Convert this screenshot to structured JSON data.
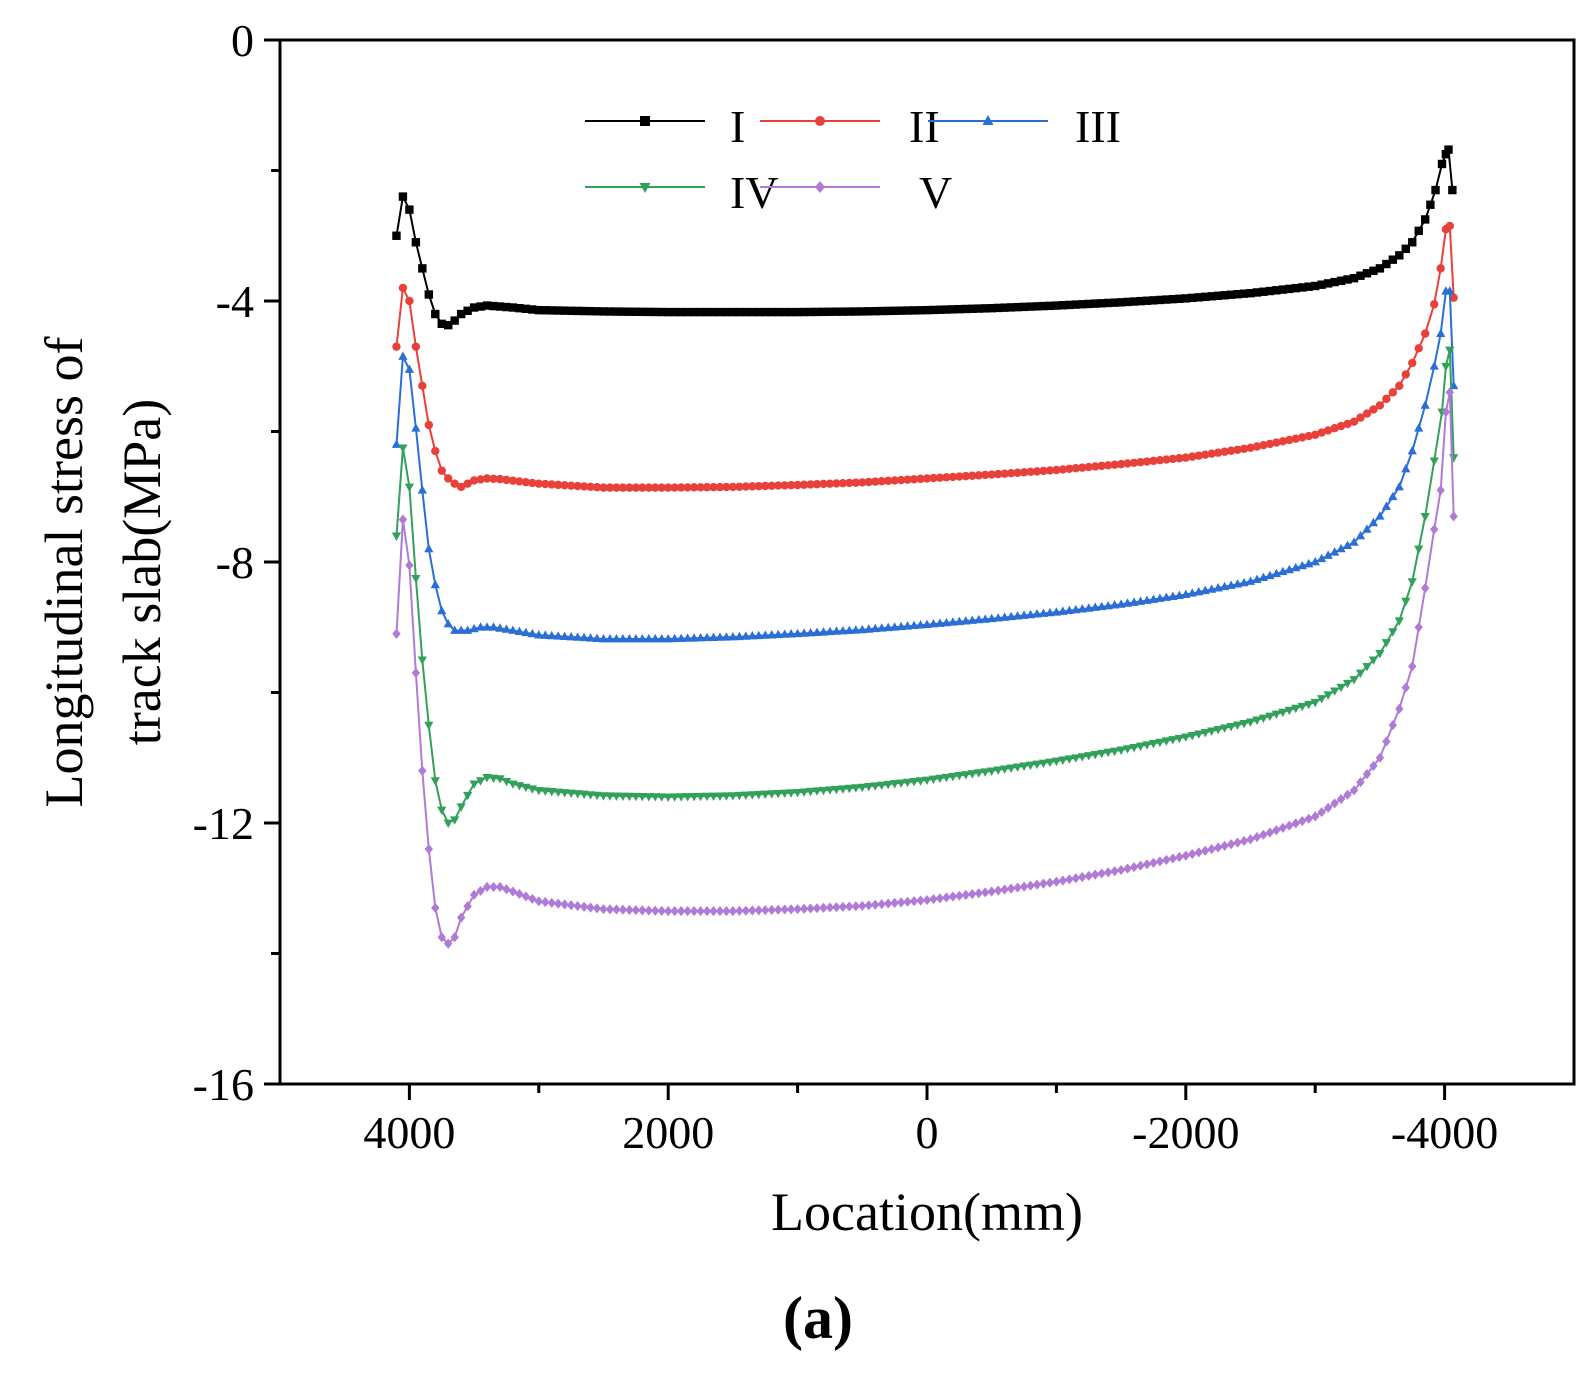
{
  "chart_data": {
    "type": "line",
    "title": "",
    "xlabel": "Location(mm)",
    "ylabel_lines": [
      "Longitudinal stress of",
      "track slab(MPa)"
    ],
    "xlim": [
      5000,
      -5000
    ],
    "ylim": [
      -16,
      0
    ],
    "x_ticks": [
      4000,
      2000,
      0,
      -2000,
      -4000
    ],
    "x_tick_labels": [
      "4000",
      "2000",
      "0",
      "-2000",
      "-4000"
    ],
    "y_ticks": [
      0,
      -4,
      -8,
      -12,
      -16
    ],
    "y_tick_labels": [
      "0",
      "-4",
      "-8",
      "-12",
      "-16"
    ],
    "legend_position": "top-center",
    "panel_label": "(a)",
    "series": [
      {
        "name": "I",
        "color": "#000000",
        "marker": "square",
        "points": [
          [
            4100,
            -3.0
          ],
          [
            4050,
            -2.4
          ],
          [
            4000,
            -2.6
          ],
          [
            3950,
            -3.1
          ],
          [
            3900,
            -3.5
          ],
          [
            3850,
            -3.9
          ],
          [
            3800,
            -4.2
          ],
          [
            3750,
            -4.35
          ],
          [
            3700,
            -4.37
          ],
          [
            3650,
            -4.3
          ],
          [
            3600,
            -4.2
          ],
          [
            3500,
            -4.1
          ],
          [
            3400,
            -4.07
          ],
          [
            3200,
            -4.1
          ],
          [
            3000,
            -4.14
          ],
          [
            2500,
            -4.16
          ],
          [
            2000,
            -4.17
          ],
          [
            1500,
            -4.17
          ],
          [
            1000,
            -4.17
          ],
          [
            500,
            -4.16
          ],
          [
            0,
            -4.14
          ],
          [
            -500,
            -4.11
          ],
          [
            -1000,
            -4.07
          ],
          [
            -1500,
            -4.02
          ],
          [
            -2000,
            -3.96
          ],
          [
            -2500,
            -3.88
          ],
          [
            -3000,
            -3.77
          ],
          [
            -3300,
            -3.65
          ],
          [
            -3500,
            -3.5
          ],
          [
            -3650,
            -3.3
          ],
          [
            -3750,
            -3.1
          ],
          [
            -3850,
            -2.75
          ],
          [
            -3930,
            -2.3
          ],
          [
            -3980,
            -1.9
          ],
          [
            -4010,
            -1.75
          ],
          [
            -4030,
            -1.68
          ],
          [
            -4060,
            -2.3
          ]
        ]
      },
      {
        "name": "II",
        "color": "#e8413a",
        "marker": "circle",
        "points": [
          [
            4100,
            -4.7
          ],
          [
            4050,
            -3.8
          ],
          [
            4000,
            -4.0
          ],
          [
            3950,
            -4.7
          ],
          [
            3900,
            -5.3
          ],
          [
            3850,
            -5.9
          ],
          [
            3800,
            -6.3
          ],
          [
            3750,
            -6.6
          ],
          [
            3700,
            -6.72
          ],
          [
            3650,
            -6.8
          ],
          [
            3600,
            -6.85
          ],
          [
            3550,
            -6.8
          ],
          [
            3500,
            -6.75
          ],
          [
            3400,
            -6.72
          ],
          [
            3300,
            -6.73
          ],
          [
            3000,
            -6.8
          ],
          [
            2500,
            -6.86
          ],
          [
            2000,
            -6.86
          ],
          [
            1500,
            -6.85
          ],
          [
            1000,
            -6.82
          ],
          [
            500,
            -6.78
          ],
          [
            0,
            -6.72
          ],
          [
            -500,
            -6.66
          ],
          [
            -1000,
            -6.59
          ],
          [
            -1500,
            -6.5
          ],
          [
            -2000,
            -6.4
          ],
          [
            -2500,
            -6.25
          ],
          [
            -3000,
            -6.05
          ],
          [
            -3300,
            -5.85
          ],
          [
            -3500,
            -5.6
          ],
          [
            -3650,
            -5.3
          ],
          [
            -3750,
            -4.95
          ],
          [
            -3850,
            -4.5
          ],
          [
            -3920,
            -4.05
          ],
          [
            -3970,
            -3.5
          ],
          [
            -4010,
            -2.9
          ],
          [
            -4040,
            -2.85
          ],
          [
            -4070,
            -3.95
          ]
        ]
      },
      {
        "name": "III",
        "color": "#2b6fd6",
        "marker": "triangle-up",
        "points": [
          [
            4100,
            -6.2
          ],
          [
            4050,
            -4.85
          ],
          [
            4000,
            -5.05
          ],
          [
            3950,
            -5.95
          ],
          [
            3900,
            -6.9
          ],
          [
            3850,
            -7.8
          ],
          [
            3800,
            -8.35
          ],
          [
            3750,
            -8.75
          ],
          [
            3700,
            -8.95
          ],
          [
            3650,
            -9.05
          ],
          [
            3550,
            -9.05
          ],
          [
            3450,
            -9.0
          ],
          [
            3350,
            -9.0
          ],
          [
            3200,
            -9.05
          ],
          [
            3000,
            -9.12
          ],
          [
            2500,
            -9.18
          ],
          [
            2000,
            -9.18
          ],
          [
            1500,
            -9.15
          ],
          [
            1000,
            -9.1
          ],
          [
            500,
            -9.04
          ],
          [
            0,
            -8.96
          ],
          [
            -500,
            -8.87
          ],
          [
            -1000,
            -8.77
          ],
          [
            -1500,
            -8.65
          ],
          [
            -2000,
            -8.5
          ],
          [
            -2500,
            -8.3
          ],
          [
            -3000,
            -8.0
          ],
          [
            -3300,
            -7.7
          ],
          [
            -3500,
            -7.3
          ],
          [
            -3650,
            -6.85
          ],
          [
            -3750,
            -6.3
          ],
          [
            -3850,
            -5.6
          ],
          [
            -3920,
            -5.0
          ],
          [
            -3970,
            -4.5
          ],
          [
            -4010,
            -3.85
          ],
          [
            -4040,
            -3.85
          ],
          [
            -4070,
            -5.3
          ]
        ]
      },
      {
        "name": "IV",
        "color": "#33a05c",
        "marker": "triangle-down",
        "points": [
          [
            4100,
            -7.6
          ],
          [
            4050,
            -6.25
          ],
          [
            4000,
            -6.85
          ],
          [
            3950,
            -8.25
          ],
          [
            3900,
            -9.5
          ],
          [
            3850,
            -10.5
          ],
          [
            3800,
            -11.35
          ],
          [
            3750,
            -11.8
          ],
          [
            3700,
            -12.0
          ],
          [
            3650,
            -11.95
          ],
          [
            3600,
            -11.75
          ],
          [
            3500,
            -11.4
          ],
          [
            3400,
            -11.3
          ],
          [
            3300,
            -11.32
          ],
          [
            3200,
            -11.4
          ],
          [
            3000,
            -11.5
          ],
          [
            2500,
            -11.58
          ],
          [
            2000,
            -11.6
          ],
          [
            1500,
            -11.58
          ],
          [
            1000,
            -11.53
          ],
          [
            500,
            -11.45
          ],
          [
            0,
            -11.34
          ],
          [
            -500,
            -11.2
          ],
          [
            -1000,
            -11.05
          ],
          [
            -1500,
            -10.88
          ],
          [
            -2000,
            -10.68
          ],
          [
            -2500,
            -10.45
          ],
          [
            -3000,
            -10.15
          ],
          [
            -3300,
            -9.8
          ],
          [
            -3500,
            -9.4
          ],
          [
            -3650,
            -8.9
          ],
          [
            -3750,
            -8.3
          ],
          [
            -3850,
            -7.3
          ],
          [
            -3920,
            -6.45
          ],
          [
            -3980,
            -5.7
          ],
          [
            -4010,
            -5.0
          ],
          [
            -4040,
            -4.75
          ],
          [
            -4070,
            -6.4
          ]
        ]
      },
      {
        "name": "V",
        "color": "#b07bd6",
        "marker": "diamond",
        "points": [
          [
            4100,
            -9.1
          ],
          [
            4050,
            -7.35
          ],
          [
            4000,
            -8.05
          ],
          [
            3950,
            -9.7
          ],
          [
            3900,
            -11.2
          ],
          [
            3850,
            -12.4
          ],
          [
            3800,
            -13.3
          ],
          [
            3750,
            -13.75
          ],
          [
            3700,
            -13.85
          ],
          [
            3650,
            -13.75
          ],
          [
            3600,
            -13.45
          ],
          [
            3500,
            -13.1
          ],
          [
            3400,
            -12.98
          ],
          [
            3300,
            -12.98
          ],
          [
            3200,
            -13.05
          ],
          [
            3000,
            -13.2
          ],
          [
            2500,
            -13.32
          ],
          [
            2000,
            -13.35
          ],
          [
            1500,
            -13.35
          ],
          [
            1000,
            -13.32
          ],
          [
            500,
            -13.27
          ],
          [
            0,
            -13.18
          ],
          [
            -500,
            -13.05
          ],
          [
            -1000,
            -12.9
          ],
          [
            -1500,
            -12.72
          ],
          [
            -2000,
            -12.5
          ],
          [
            -2500,
            -12.25
          ],
          [
            -3000,
            -11.9
          ],
          [
            -3300,
            -11.5
          ],
          [
            -3500,
            -11.0
          ],
          [
            -3650,
            -10.25
          ],
          [
            -3750,
            -9.6
          ],
          [
            -3850,
            -8.4
          ],
          [
            -3920,
            -7.5
          ],
          [
            -3970,
            -6.9
          ],
          [
            -4010,
            -5.7
          ],
          [
            -4040,
            -5.4
          ],
          [
            -4070,
            -7.3
          ]
        ]
      }
    ]
  }
}
